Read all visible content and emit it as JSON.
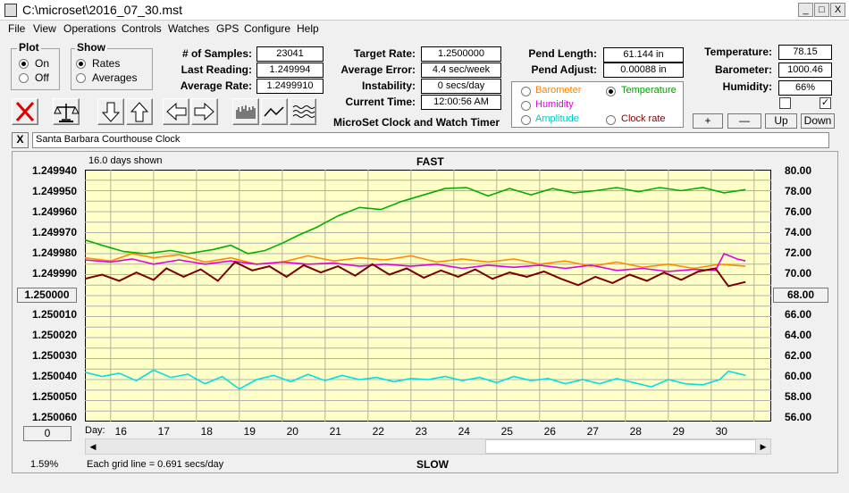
{
  "window": {
    "title": "C:\\microset\\2016_07_30.mst",
    "min": "_",
    "max": "□",
    "close": "X"
  },
  "menu": [
    "File",
    "View",
    "Operations",
    "Controls",
    "Watches",
    "GPS",
    "Configure",
    "Help"
  ],
  "plot_group": {
    "title": "Plot",
    "on": "On",
    "off": "Off"
  },
  "show_group": {
    "title": "Show",
    "rates": "Rates",
    "averages": "Averages"
  },
  "stats": {
    "samples_label": "# of Samples:",
    "samples": "23041",
    "last_label": "Last Reading:",
    "last": "1.249994",
    "avg_label": "Average Rate:",
    "avg": "1.2499910"
  },
  "target": {
    "target_label": "Target Rate:",
    "target": "1.2500000",
    "err_label": "Average Error:",
    "err": "4.4 sec/week",
    "inst_label": "Instability:",
    "inst": "0 secs/day",
    "time_label": "Current Time:",
    "time": "12:00:56 AM"
  },
  "pend": {
    "len_label": "Pend Length:",
    "len": "61.144 in",
    "adj_label": "Pend Adjust:",
    "adj": "0.00088 in"
  },
  "env": {
    "temp_label": "Temperature:",
    "temp": "78.15",
    "baro_label": "Barometer:",
    "baro": "1000.46",
    "hum_label": "Humidity:",
    "hum": "66%"
  },
  "app_caption": "MicroSet Clock and Watch Timer",
  "aux": {
    "barometer": "Barometer",
    "temperature": "Temperature",
    "humidity": "Humidity",
    "amplitude": "Amplitude",
    "clockrate": "Clock rate",
    "colors": {
      "barometer": "#ff8000",
      "temperature": "#00a000",
      "humidity": "#e000e0",
      "amplitude": "#00c8c8",
      "clockrate": "#800000"
    }
  },
  "adjust_buttons": {
    "plus": "+",
    "minus": "—",
    "up": "Up",
    "down": "Down"
  },
  "clock_name": "Santa Barbara Courthouse Clock",
  "clear_btn": "X",
  "chart": {
    "days_shown": "16.0 days shown",
    "fast": "FAST",
    "slow": "SLOW",
    "grid_note": "Each grid line = 0.691 secs/day",
    "percent": "1.59%",
    "center_left": "1.250000",
    "center_right": "68.00",
    "bottom_btn": "0",
    "day_label": "Day:"
  },
  "chart_data": {
    "type": "line",
    "left_ticks": [
      "1.249940",
      "1.249950",
      "1.249960",
      "1.249970",
      "1.249980",
      "1.249990",
      "",
      "1.250010",
      "1.250020",
      "1.250030",
      "1.250040",
      "1.250050",
      "1.250060"
    ],
    "right_ticks": [
      "80.00",
      "78.00",
      "76.00",
      "74.00",
      "72.00",
      "70.00",
      "",
      "66.00",
      "64.00",
      "62.00",
      "60.00",
      "58.00",
      "56.00"
    ],
    "x_ticks": [
      "16",
      "17",
      "18",
      "19",
      "20",
      "21",
      "22",
      "23",
      "24",
      "25",
      "26",
      "27",
      "28",
      "29",
      "30"
    ],
    "x_range": [
      15.4,
      31.4
    ],
    "right_range": [
      56,
      80
    ],
    "series": [
      {
        "key": "temperature",
        "color": "#00b000",
        "values": [
          [
            15.4,
            73.3
          ],
          [
            15.8,
            72.8
          ],
          [
            16.3,
            72.2
          ],
          [
            16.8,
            72.0
          ],
          [
            17.4,
            72.3
          ],
          [
            17.8,
            72.0
          ],
          [
            18.4,
            72.4
          ],
          [
            18.8,
            72.8
          ],
          [
            19.2,
            72.0
          ],
          [
            19.6,
            72.3
          ],
          [
            20.0,
            73.0
          ],
          [
            20.4,
            73.8
          ],
          [
            20.8,
            74.5
          ],
          [
            21.3,
            75.6
          ],
          [
            21.8,
            76.4
          ],
          [
            22.3,
            76.2
          ],
          [
            22.8,
            77.0
          ],
          [
            23.3,
            77.6
          ],
          [
            23.8,
            78.2
          ],
          [
            24.3,
            78.3
          ],
          [
            24.8,
            77.5
          ],
          [
            25.3,
            78.2
          ],
          [
            25.8,
            77.6
          ],
          [
            26.3,
            78.2
          ],
          [
            26.8,
            77.8
          ],
          [
            27.3,
            78.0
          ],
          [
            27.8,
            78.3
          ],
          [
            28.3,
            77.9
          ],
          [
            28.8,
            78.3
          ],
          [
            29.3,
            78.0
          ],
          [
            29.8,
            78.3
          ],
          [
            30.3,
            77.8
          ],
          [
            30.8,
            78.1
          ]
        ]
      },
      {
        "key": "barometer",
        "color": "#ff8c00",
        "values": [
          [
            15.4,
            71.6
          ],
          [
            16.0,
            71.3
          ],
          [
            16.5,
            72.0
          ],
          [
            17.0,
            71.6
          ],
          [
            17.6,
            71.9
          ],
          [
            18.2,
            71.2
          ],
          [
            18.8,
            71.6
          ],
          [
            19.4,
            71.0
          ],
          [
            20.0,
            71.2
          ],
          [
            20.6,
            71.8
          ],
          [
            21.2,
            71.3
          ],
          [
            21.8,
            71.6
          ],
          [
            22.4,
            71.4
          ],
          [
            23.0,
            71.8
          ],
          [
            23.6,
            71.2
          ],
          [
            24.2,
            71.5
          ],
          [
            24.8,
            71.2
          ],
          [
            25.4,
            71.5
          ],
          [
            26.0,
            71.0
          ],
          [
            26.6,
            71.3
          ],
          [
            27.2,
            70.8
          ],
          [
            27.8,
            71.2
          ],
          [
            28.4,
            70.7
          ],
          [
            29.0,
            71.0
          ],
          [
            29.6,
            70.6
          ],
          [
            30.2,
            71.0
          ],
          [
            30.8,
            70.8
          ]
        ]
      },
      {
        "key": "humidity",
        "color": "#e000e0",
        "values": [
          [
            15.4,
            71.4
          ],
          [
            16.0,
            71.2
          ],
          [
            16.5,
            71.5
          ],
          [
            17.0,
            71.0
          ],
          [
            17.6,
            71.4
          ],
          [
            18.2,
            71.0
          ],
          [
            18.8,
            71.3
          ],
          [
            19.4,
            71.0
          ],
          [
            20.0,
            71.2
          ],
          [
            20.6,
            71.0
          ],
          [
            21.2,
            71.1
          ],
          [
            21.8,
            70.8
          ],
          [
            22.4,
            71.0
          ],
          [
            23.0,
            70.8
          ],
          [
            23.6,
            71.0
          ],
          [
            24.2,
            70.6
          ],
          [
            24.8,
            70.9
          ],
          [
            25.4,
            70.7
          ],
          [
            26.0,
            70.9
          ],
          [
            26.6,
            70.6
          ],
          [
            27.2,
            70.9
          ],
          [
            27.8,
            70.4
          ],
          [
            28.4,
            70.6
          ],
          [
            29.0,
            70.3
          ],
          [
            29.6,
            70.5
          ],
          [
            30.1,
            70.4
          ],
          [
            30.3,
            72.0
          ],
          [
            30.6,
            71.5
          ],
          [
            30.8,
            71.3
          ]
        ]
      },
      {
        "key": "clockrate",
        "color": "#7a0000",
        "values": [
          [
            15.4,
            69.6
          ],
          [
            15.8,
            70.0
          ],
          [
            16.2,
            69.4
          ],
          [
            16.6,
            70.2
          ],
          [
            17.0,
            69.5
          ],
          [
            17.3,
            70.6
          ],
          [
            17.7,
            69.8
          ],
          [
            18.1,
            70.5
          ],
          [
            18.5,
            69.4
          ],
          [
            18.9,
            71.2
          ],
          [
            19.3,
            70.4
          ],
          [
            19.7,
            70.8
          ],
          [
            20.1,
            69.8
          ],
          [
            20.5,
            70.9
          ],
          [
            20.9,
            70.2
          ],
          [
            21.3,
            70.8
          ],
          [
            21.7,
            69.9
          ],
          [
            22.1,
            71.0
          ],
          [
            22.5,
            70.0
          ],
          [
            22.9,
            70.6
          ],
          [
            23.3,
            69.7
          ],
          [
            23.7,
            70.4
          ],
          [
            24.1,
            69.8
          ],
          [
            24.5,
            70.5
          ],
          [
            24.9,
            69.6
          ],
          [
            25.3,
            70.2
          ],
          [
            25.7,
            69.8
          ],
          [
            26.1,
            70.3
          ],
          [
            26.5,
            69.6
          ],
          [
            26.9,
            69.0
          ],
          [
            27.3,
            69.8
          ],
          [
            27.7,
            69.2
          ],
          [
            28.1,
            70.0
          ],
          [
            28.5,
            69.4
          ],
          [
            28.9,
            70.2
          ],
          [
            29.3,
            69.5
          ],
          [
            29.7,
            70.3
          ],
          [
            30.1,
            70.6
          ],
          [
            30.4,
            68.9
          ],
          [
            30.8,
            69.3
          ]
        ]
      },
      {
        "key": "amplitude",
        "color": "#00e0e0",
        "values": [
          [
            15.4,
            60.7
          ],
          [
            15.8,
            60.3
          ],
          [
            16.2,
            60.6
          ],
          [
            16.6,
            59.9
          ],
          [
            17.0,
            60.9
          ],
          [
            17.4,
            60.2
          ],
          [
            17.8,
            60.5
          ],
          [
            18.2,
            59.6
          ],
          [
            18.6,
            60.3
          ],
          [
            19.0,
            59.1
          ],
          [
            19.4,
            60.0
          ],
          [
            19.8,
            60.4
          ],
          [
            20.2,
            59.8
          ],
          [
            20.6,
            60.5
          ],
          [
            21.0,
            59.9
          ],
          [
            21.4,
            60.4
          ],
          [
            21.8,
            60.0
          ],
          [
            22.2,
            60.2
          ],
          [
            22.6,
            59.8
          ],
          [
            23.0,
            60.1
          ],
          [
            23.4,
            60.0
          ],
          [
            23.8,
            60.3
          ],
          [
            24.2,
            59.9
          ],
          [
            24.6,
            60.2
          ],
          [
            25.0,
            59.7
          ],
          [
            25.4,
            60.3
          ],
          [
            25.8,
            59.9
          ],
          [
            26.2,
            60.1
          ],
          [
            26.6,
            59.6
          ],
          [
            27.0,
            60.0
          ],
          [
            27.4,
            59.6
          ],
          [
            27.8,
            60.1
          ],
          [
            28.2,
            59.7
          ],
          [
            28.6,
            59.3
          ],
          [
            29.0,
            60.0
          ],
          [
            29.4,
            59.6
          ],
          [
            29.8,
            59.5
          ],
          [
            30.2,
            60.0
          ],
          [
            30.4,
            60.8
          ],
          [
            30.8,
            60.4
          ]
        ]
      }
    ]
  }
}
